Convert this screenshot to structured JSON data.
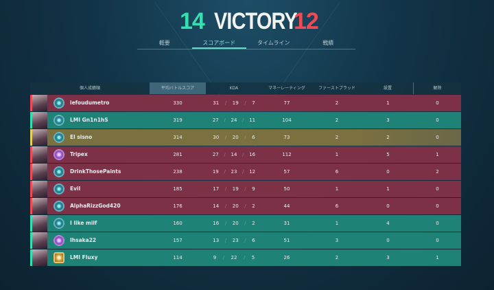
{
  "header": {
    "team_score": "14",
    "result": "VICTORY",
    "enemy_score": "12"
  },
  "tabs": [
    {
      "label": "概要"
    },
    {
      "label": "スコアボード",
      "active": true
    },
    {
      "label": "タイムライン"
    },
    {
      "label": "戦績"
    }
  ],
  "columns": [
    "個人成績順",
    "平均バトルスコア",
    "KDA",
    "マネーレーティング",
    "ファーストブラッド",
    "設置",
    "解除"
  ],
  "colors": {
    "team_a": "#35e0b0",
    "team_b": "#f04a55",
    "self": "#e6d25a"
  },
  "rows": [
    {
      "team": "red",
      "rank": "teal",
      "name": "lefoudumetro",
      "acs": "330",
      "k": "31",
      "d": "19",
      "a": "7",
      "econ": "77",
      "fb": "2",
      "plants": "1",
      "defuses": "0"
    },
    {
      "team": "teal",
      "rank": "teal",
      "name": "LMI Gn1n1hS",
      "acs": "319",
      "k": "27",
      "d": "24",
      "a": "11",
      "econ": "104",
      "fb": "2",
      "plants": "3",
      "defuses": "0"
    },
    {
      "team": "self",
      "rank": "teal",
      "name": "El sisno",
      "acs": "314",
      "k": "30",
      "d": "20",
      "a": "6",
      "econ": "73",
      "fb": "2",
      "plants": "2",
      "defuses": "0"
    },
    {
      "team": "red",
      "rank": "purple",
      "name": "Tripex",
      "acs": "281",
      "k": "27",
      "d": "14",
      "a": "16",
      "econ": "112",
      "fb": "1",
      "plants": "5",
      "defuses": "1"
    },
    {
      "team": "red",
      "rank": "teal",
      "name": "DrinkThosePaints",
      "acs": "238",
      "k": "19",
      "d": "23",
      "a": "12",
      "econ": "57",
      "fb": "6",
      "plants": "0",
      "defuses": "2"
    },
    {
      "team": "red",
      "rank": "teal",
      "name": "Evil",
      "acs": "185",
      "k": "17",
      "d": "19",
      "a": "9",
      "econ": "50",
      "fb": "1",
      "plants": "1",
      "defuses": "0"
    },
    {
      "team": "red",
      "rank": "teal",
      "name": "AlphaRizzGod420",
      "acs": "176",
      "k": "14",
      "d": "20",
      "a": "2",
      "econ": "44",
      "fb": "6",
      "plants": "0",
      "defuses": "0"
    },
    {
      "team": "teal",
      "rank": "teal",
      "name": "I like milf",
      "acs": "160",
      "k": "16",
      "d": "20",
      "a": "2",
      "econ": "31",
      "fb": "1",
      "plants": "4",
      "defuses": "0"
    },
    {
      "team": "teal",
      "rank": "purple",
      "name": "Ihsaka22",
      "acs": "157",
      "k": "13",
      "d": "23",
      "a": "6",
      "econ": "51",
      "fb": "3",
      "plants": "0",
      "defuses": "0"
    },
    {
      "team": "teal",
      "rank": "gold",
      "name": "LMI Fluxy",
      "acs": "114",
      "k": "9",
      "d": "22",
      "a": "5",
      "econ": "26",
      "fb": "2",
      "plants": "3",
      "defuses": "1"
    }
  ]
}
